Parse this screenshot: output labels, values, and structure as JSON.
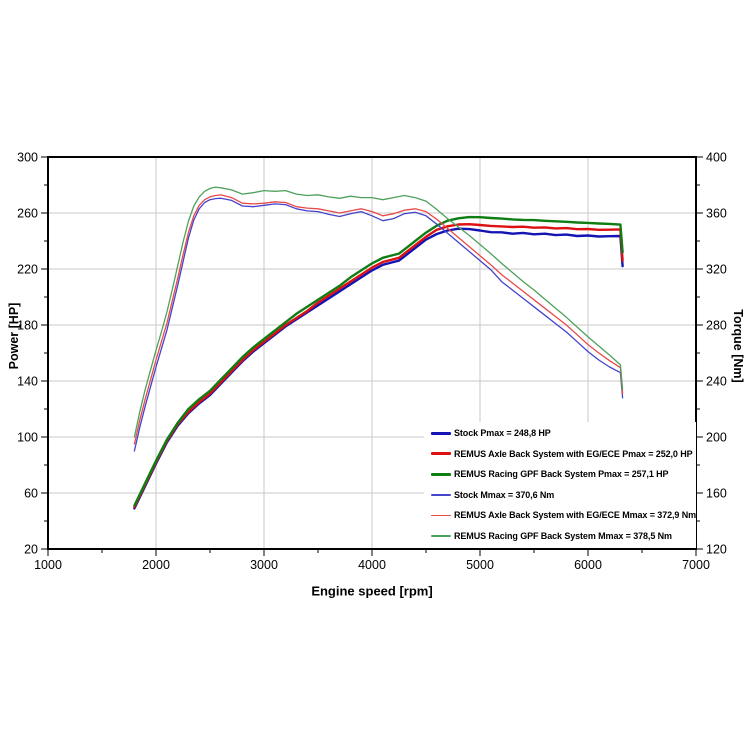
{
  "chart_data": {
    "type": "line",
    "xlabel": "Engine speed [rpm]",
    "ylabel_left": "Power [HP]",
    "ylabel_right": "Torque [Nm]",
    "xlim": [
      1000,
      7000
    ],
    "ylim_left": [
      20,
      300
    ],
    "ylim_right": [
      120,
      400
    ],
    "x_ticks": [
      1000,
      2000,
      3000,
      4000,
      5000,
      6000,
      7000
    ],
    "x_minor_ticks": [
      1500,
      2500,
      3500,
      4500,
      5500,
      6500
    ],
    "y_left_ticks": [
      300,
      260,
      220,
      180,
      140,
      100,
      60,
      20
    ],
    "y_left_minor_ticks": [
      280,
      240,
      200,
      160,
      120,
      80,
      40
    ],
    "y_right_ticks": [
      400,
      360,
      320,
      280,
      240,
      200,
      160,
      120
    ],
    "grid": true,
    "grid_color": "#c9c9c9",
    "frame_color": "#000000",
    "legend_position": "inside-bottom-right",
    "series": [
      {
        "name": "Stock Pmax = 248,8 HP",
        "peak_value": "248,8 HP",
        "axis": "left",
        "color": "#1414b4",
        "width": 2.4,
        "x": [
          1800,
          1900,
          2000,
          2100,
          2200,
          2300,
          2400,
          2500,
          2600,
          2700,
          2800,
          2900,
          3000,
          3100,
          3200,
          3300,
          3400,
          3500,
          3600,
          3700,
          3800,
          3900,
          4000,
          4100,
          4150,
          4250,
          4300,
          4400,
          4500,
          4600,
          4700,
          4800,
          4900,
          5000,
          5100,
          5200,
          5300,
          5400,
          5500,
          5600,
          5700,
          5800,
          5900,
          6000,
          6100,
          6200,
          6300,
          6320
        ],
        "y": [
          49,
          65,
          81,
          96,
          108,
          117,
          124,
          130,
          138,
          146,
          154,
          161,
          167,
          173,
          179,
          184,
          189,
          194,
          199,
          204,
          209,
          214,
          219,
          223,
          224,
          226,
          229,
          235,
          241,
          245,
          247.5,
          248.8,
          248.5,
          247.5,
          246.3,
          246.2,
          245.2,
          245.8,
          244.8,
          245.2,
          244.2,
          244.6,
          243.6,
          243.9,
          243.2,
          243.4,
          243.6,
          222
        ]
      },
      {
        "name": "REMUS Axle Back System with EG/ECE Pmax = 252,0 HP",
        "peak_value": "252,0 HP",
        "axis": "left",
        "color": "#dd1111",
        "width": 2.4,
        "x": [
          1800,
          1900,
          2000,
          2100,
          2200,
          2300,
          2400,
          2500,
          2600,
          2700,
          2800,
          2900,
          3000,
          3100,
          3200,
          3300,
          3400,
          3500,
          3600,
          3700,
          3800,
          3900,
          4000,
          4100,
          4150,
          4250,
          4300,
          4400,
          4500,
          4600,
          4700,
          4800,
          4900,
          5000,
          5100,
          5200,
          5300,
          5400,
          5500,
          5600,
          5700,
          5800,
          5900,
          6000,
          6100,
          6200,
          6300,
          6320
        ],
        "y": [
          50,
          66,
          82,
          97,
          109,
          118,
          125,
          131,
          139,
          147,
          155,
          162,
          168,
          174,
          180,
          185,
          190,
          196,
          201,
          206,
          211,
          216,
          221,
          225,
          226,
          228,
          231,
          237,
          243,
          248,
          250.5,
          251.8,
          252,
          251.4,
          250.8,
          250.4,
          250,
          250.2,
          249.5,
          249.7,
          249,
          249.2,
          248.4,
          248.6,
          248,
          248.1,
          248.3,
          226
        ]
      },
      {
        "name": "REMUS Racing GPF Back System Pmax = 257,1 HP",
        "peak_value": "257,1 HP",
        "axis": "left",
        "color": "#0e7d12",
        "width": 2.4,
        "x": [
          1800,
          1900,
          2000,
          2100,
          2200,
          2300,
          2400,
          2500,
          2600,
          2700,
          2800,
          2900,
          3000,
          3100,
          3200,
          3300,
          3400,
          3500,
          3600,
          3700,
          3800,
          3900,
          4000,
          4100,
          4150,
          4250,
          4300,
          4400,
          4500,
          4600,
          4700,
          4800,
          4900,
          5000,
          5100,
          5200,
          5300,
          5400,
          5500,
          5600,
          5700,
          5800,
          5900,
          6000,
          6100,
          6200,
          6300,
          6320
        ],
        "y": [
          51,
          67,
          83,
          98,
          110,
          120,
          127,
          133,
          141,
          149,
          157,
          164,
          170,
          176,
          182,
          188,
          193,
          198,
          203,
          208,
          214,
          219,
          224,
          228,
          229,
          231,
          234,
          240,
          246,
          251,
          254.5,
          256.2,
          257.1,
          257,
          256.4,
          256,
          255.4,
          255.1,
          254.9,
          254.4,
          254.1,
          253.7,
          253.2,
          252.9,
          252.5,
          252.2,
          251.7,
          232
        ]
      },
      {
        "name": "Stock Mmax = 370,6 Nm",
        "peak_value": "370,6 Nm",
        "axis": "right",
        "color": "#4444cc",
        "width": 1.3,
        "x": [
          1800,
          1850,
          1900,
          1950,
          2000,
          2050,
          2100,
          2150,
          2200,
          2250,
          2300,
          2350,
          2400,
          2450,
          2500,
          2550,
          2600,
          2700,
          2800,
          2900,
          3000,
          3100,
          3200,
          3300,
          3400,
          3500,
          3600,
          3700,
          3800,
          3900,
          4000,
          4100,
          4200,
          4300,
          4400,
          4500,
          4600,
          4700,
          4800,
          4900,
          5000,
          5100,
          5200,
          5300,
          5400,
          5500,
          5600,
          5700,
          5800,
          5900,
          6000,
          6100,
          6200,
          6250,
          6300,
          6320
        ],
        "y": [
          190,
          207,
          222,
          236,
          250,
          263,
          276,
          292,
          308,
          325,
          342,
          355,
          363,
          367.5,
          369.5,
          370.3,
          370.6,
          369,
          365,
          364.5,
          365.5,
          366.5,
          366,
          363,
          361.5,
          361,
          359,
          357.5,
          359.5,
          361,
          358,
          354.5,
          356,
          359.5,
          360.5,
          358,
          352,
          345.5,
          339,
          332.5,
          326,
          319.5,
          311,
          305,
          299,
          293,
          287,
          281,
          275,
          268,
          261,
          255,
          250,
          248,
          246,
          228
        ]
      },
      {
        "name": "REMUS Axle Back System with EG/ECE Mmax = 372,9 Nm",
        "peak_value": "372,9 Nm",
        "axis": "right",
        "color": "#e84a4a",
        "width": 1.3,
        "x": [
          1800,
          1850,
          1900,
          1950,
          2000,
          2050,
          2100,
          2150,
          2200,
          2250,
          2300,
          2350,
          2400,
          2450,
          2500,
          2550,
          2600,
          2700,
          2800,
          2900,
          3000,
          3100,
          3200,
          3300,
          3400,
          3500,
          3600,
          3700,
          3800,
          3900,
          4000,
          4100,
          4200,
          4300,
          4400,
          4500,
          4600,
          4700,
          4800,
          4900,
          5000,
          5100,
          5200,
          5300,
          5400,
          5500,
          5600,
          5700,
          5800,
          5900,
          6000,
          6100,
          6200,
          6250,
          6300,
          6320
        ],
        "y": [
          195,
          212,
          227,
          241,
          255,
          268,
          281,
          297,
          313,
          330,
          346,
          358,
          365.5,
          369.5,
          371.5,
          372.5,
          372.9,
          371,
          367,
          366.5,
          367,
          368,
          367.5,
          364.5,
          363.5,
          363,
          361.5,
          360,
          361.5,
          363,
          361,
          358,
          359.5,
          362,
          363,
          361,
          355.5,
          349,
          342.5,
          336,
          329.5,
          323,
          316,
          310,
          304,
          298,
          292,
          286,
          280,
          273,
          266,
          260,
          254.5,
          252,
          249.5,
          231
        ]
      },
      {
        "name": "REMUS Racing GPF Back System Mmax = 378,5 Nm",
        "peak_value": "378,5 Nm",
        "axis": "right",
        "color": "#4fa15c",
        "width": 1.3,
        "x": [
          1800,
          1850,
          1900,
          1950,
          2000,
          2050,
          2100,
          2150,
          2200,
          2250,
          2300,
          2350,
          2400,
          2450,
          2500,
          2550,
          2600,
          2700,
          2800,
          2900,
          3000,
          3100,
          3200,
          3300,
          3400,
          3500,
          3600,
          3700,
          3800,
          3900,
          4000,
          4100,
          4200,
          4300,
          4400,
          4500,
          4600,
          4700,
          4800,
          4900,
          5000,
          5100,
          5200,
          5300,
          5400,
          5500,
          5600,
          5700,
          5800,
          5900,
          6000,
          6100,
          6200,
          6250,
          6300,
          6320
        ],
        "y": [
          200,
          218,
          234,
          248,
          262,
          275,
          289,
          305,
          322,
          339,
          354,
          365,
          371.5,
          375.5,
          377.5,
          378.5,
          378,
          376.5,
          373.5,
          374.5,
          376,
          375.5,
          376,
          373.5,
          372.5,
          373,
          371.5,
          370.5,
          372,
          371,
          371,
          369.5,
          371,
          372.5,
          371,
          368.5,
          362.5,
          356,
          350,
          344,
          337.5,
          331,
          324,
          317.5,
          311,
          305,
          298.5,
          292,
          285.5,
          278.5,
          271.5,
          265,
          258.5,
          255,
          251.5,
          234
        ]
      }
    ]
  }
}
